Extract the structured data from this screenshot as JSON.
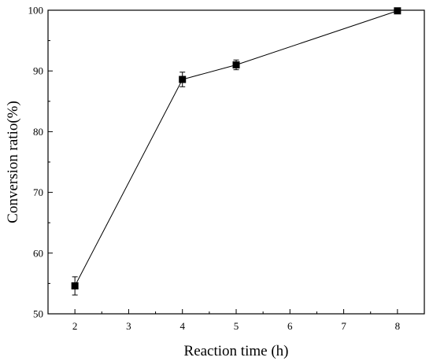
{
  "chart_data": {
    "type": "line",
    "xlabel": "Reaction time (h)",
    "ylabel": "Conversion ratio(%)",
    "xlim": [
      1.5,
      8.5
    ],
    "ylim": [
      50,
      100
    ],
    "xticks": [
      2,
      3,
      4,
      5,
      6,
      7,
      8
    ],
    "yticks": [
      50,
      60,
      70,
      80,
      90,
      100
    ],
    "grid": false,
    "marker": "square",
    "colors": {
      "line": "#000000",
      "marker": "#000000",
      "axis": "#000000"
    },
    "series": [
      {
        "x": [
          2,
          4,
          5,
          8
        ],
        "y": [
          54.6,
          88.6,
          91.0,
          99.9
        ],
        "error": [
          1.5,
          1.2,
          0.8,
          0
        ]
      }
    ]
  }
}
